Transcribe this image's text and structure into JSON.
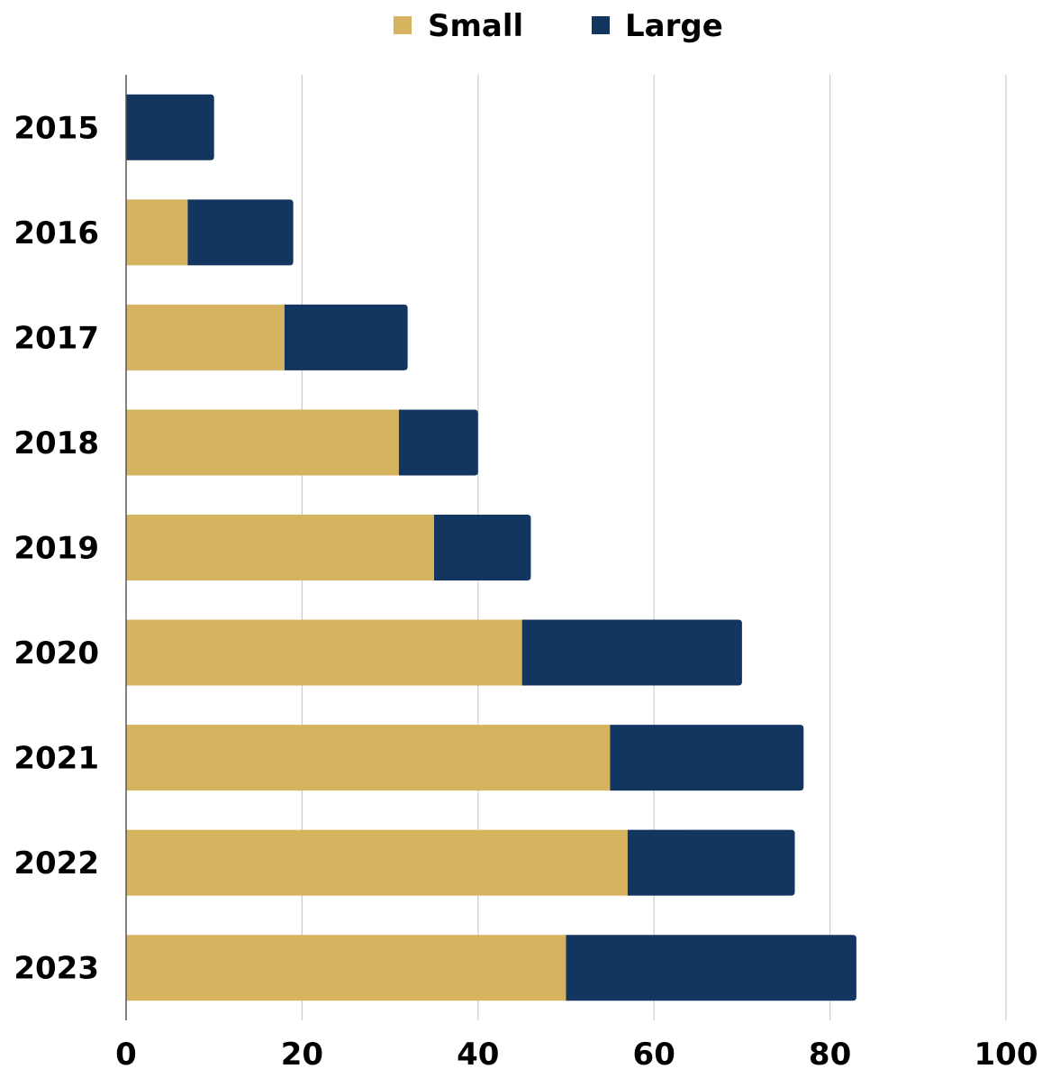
{
  "chart_data": {
    "type": "bar",
    "orientation": "horizontal",
    "stacked": true,
    "categories": [
      "2015",
      "2016",
      "2017",
      "2018",
      "2019",
      "2020",
      "2021",
      "2022",
      "2023"
    ],
    "series": [
      {
        "name": "Small",
        "color": "#D6B35F",
        "values": [
          0,
          7,
          18,
          31,
          35,
          45,
          55,
          57,
          50
        ]
      },
      {
        "name": "Large",
        "color": "#133660",
        "values": [
          10,
          12,
          14,
          9,
          11,
          25,
          22,
          19,
          33
        ]
      }
    ],
    "xlim": [
      0,
      100
    ],
    "xticks": [
      "0",
      "20",
      "40",
      "60",
      "80",
      "100"
    ],
    "grid": "vertical",
    "legend_position": "top-center"
  }
}
